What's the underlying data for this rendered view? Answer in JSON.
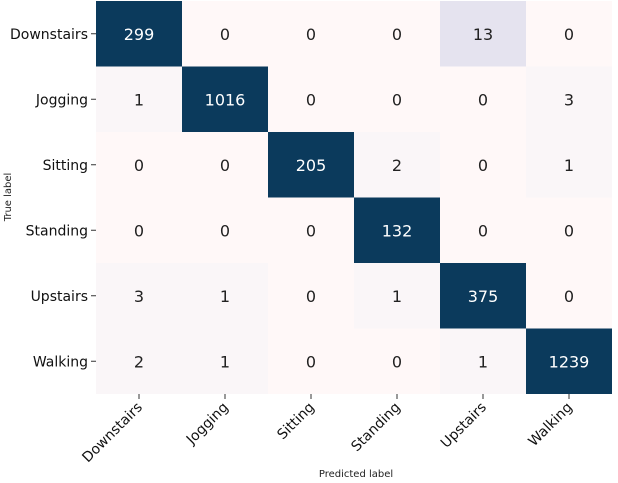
{
  "chart_data": {
    "type": "heatmap",
    "title": "",
    "xlabel": "Predicted label",
    "ylabel": "True label",
    "row_labels": [
      "Downstairs",
      "Jogging",
      "Sitting",
      "Standing",
      "Upstairs",
      "Walking"
    ],
    "col_labels": [
      "Downstairs",
      "Jogging",
      "Sitting",
      "Standing",
      "Upstairs",
      "Walking"
    ],
    "values": [
      [
        299,
        0,
        0,
        0,
        13,
        0
      ],
      [
        1,
        1016,
        0,
        0,
        0,
        3
      ],
      [
        0,
        0,
        205,
        2,
        0,
        1
      ],
      [
        0,
        0,
        0,
        132,
        0,
        0
      ],
      [
        3,
        1,
        0,
        1,
        375,
        0
      ],
      [
        2,
        1,
        0,
        0,
        1,
        1239
      ]
    ],
    "colormap": {
      "dark": "#0b3a5c",
      "light": "#fff8f8",
      "tint_13": "#e5e3ef",
      "tint_3": "#faf6f8"
    },
    "colorbar": false
  }
}
